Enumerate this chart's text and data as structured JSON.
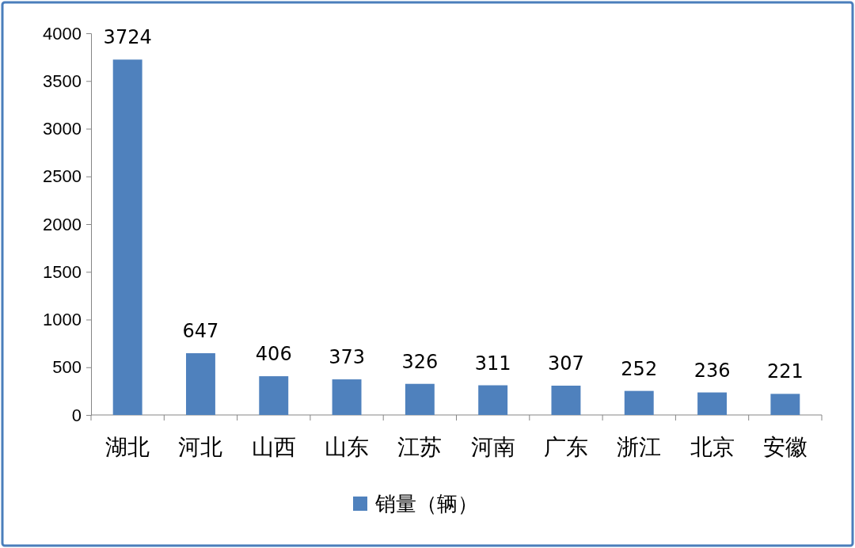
{
  "chart_data": {
    "type": "bar",
    "categories": [
      "湖北",
      "河北",
      "山西",
      "山东",
      "江苏",
      "河南",
      "广东",
      "浙江",
      "北京",
      "安徽"
    ],
    "series": [
      {
        "name": "销量（辆）",
        "color": "#4f81bd",
        "values": [
          3724,
          647,
          406,
          373,
          326,
          311,
          307,
          252,
          236,
          221
        ]
      }
    ],
    "ylim": [
      0,
      4000
    ],
    "yticks": [
      0,
      500,
      1000,
      1500,
      2000,
      2500,
      3000,
      3500,
      4000
    ],
    "data_labels": true,
    "legend": "bottom",
    "grid": false
  }
}
